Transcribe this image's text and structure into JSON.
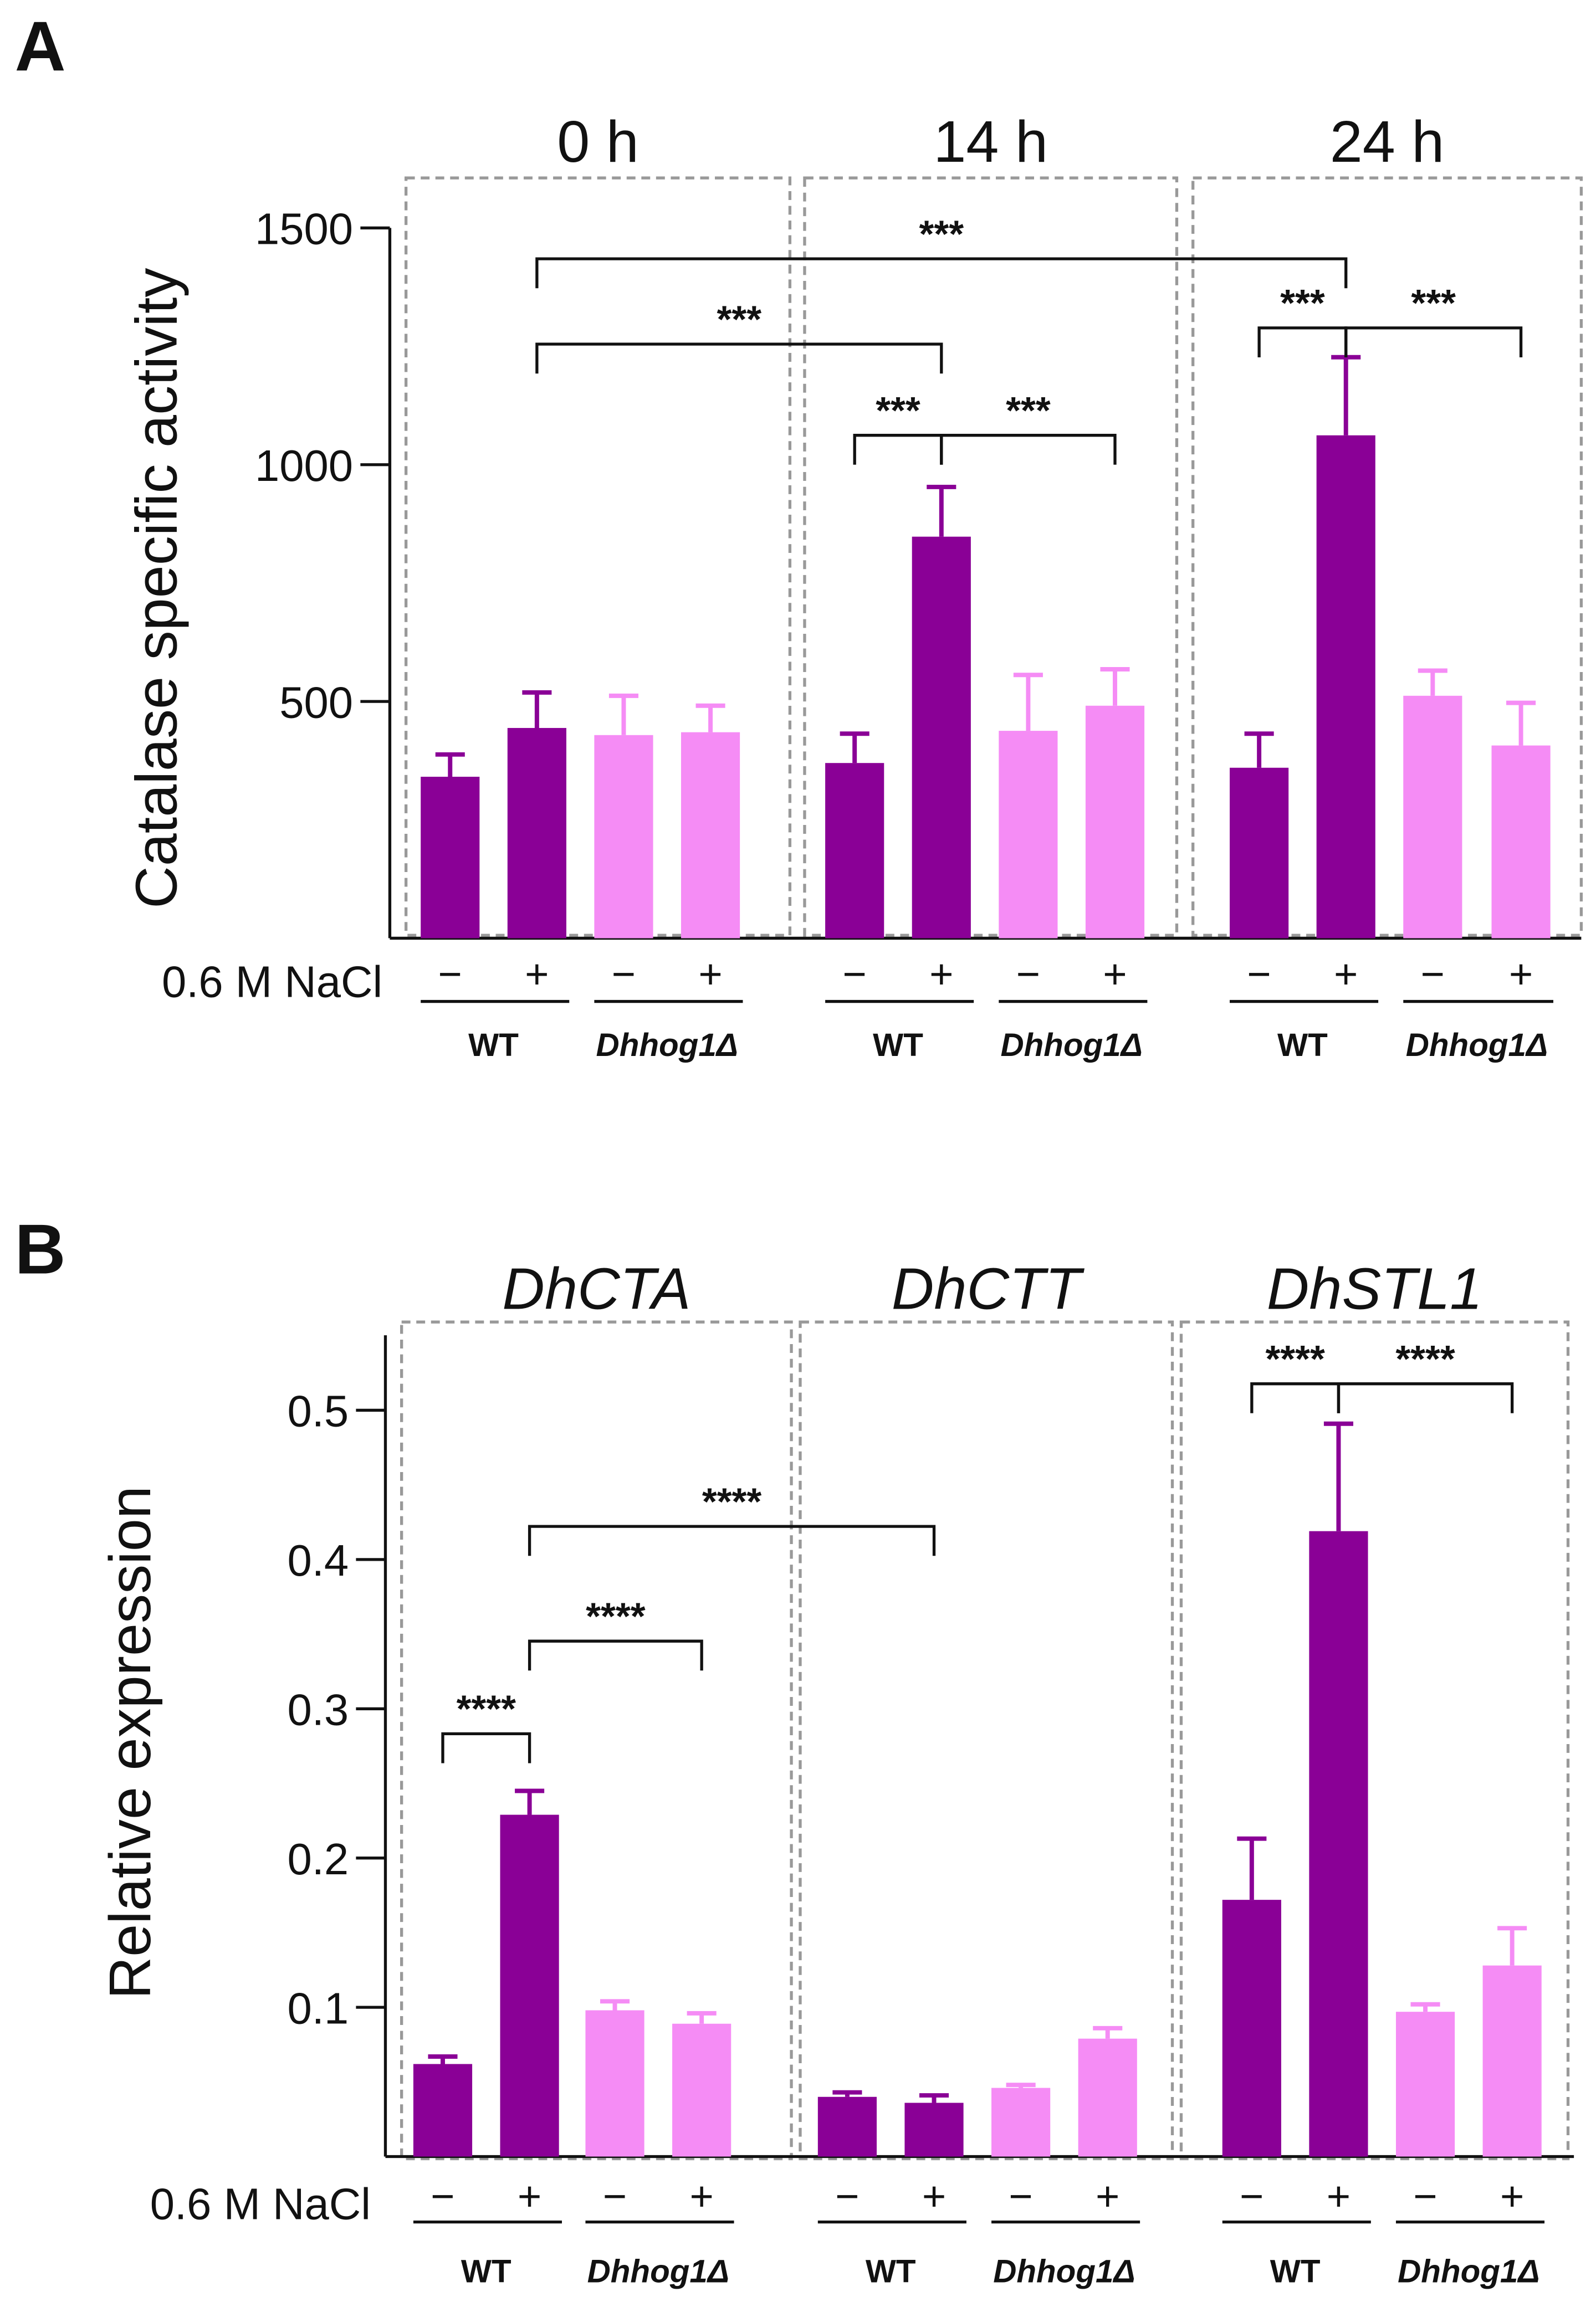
{
  "colors": {
    "WT": "#8a0096",
    "Dhhog1Δ": "#f58cf5"
  },
  "treatment_label": "0.6 M NaCl",
  "sign_minus": "−",
  "sign_plus": "+",
  "chart_data": [
    {
      "panel": "A",
      "type": "bar",
      "ylabel": "Catalase specific activity",
      "ylim": [
        0,
        1500
      ],
      "yticks": [
        500,
        1000,
        1500
      ],
      "grid": false,
      "groups": [
        {
          "title": "0 h",
          "italic": false,
          "bars": [
            {
              "strain": "WT",
              "nacl": "−",
              "value": 341,
              "error": 47
            },
            {
              "strain": "WT",
              "nacl": "+",
              "value": 444,
              "error": 75
            },
            {
              "strain": "Dhhog1Δ",
              "nacl": "−",
              "value": 429,
              "error": 83
            },
            {
              "strain": "Dhhog1Δ",
              "nacl": "+",
              "value": 435,
              "error": 56
            }
          ]
        },
        {
          "title": "14 h",
          "italic": false,
          "bars": [
            {
              "strain": "WT",
              "nacl": "−",
              "value": 370,
              "error": 62
            },
            {
              "strain": "WT",
              "nacl": "+",
              "value": 848,
              "error": 105
            },
            {
              "strain": "Dhhog1Δ",
              "nacl": "−",
              "value": 438,
              "error": 118
            },
            {
              "strain": "Dhhog1Δ",
              "nacl": "+",
              "value": 491,
              "error": 77
            }
          ]
        },
        {
          "title": "24 h",
          "italic": false,
          "bars": [
            {
              "strain": "WT",
              "nacl": "−",
              "value": 360,
              "error": 72
            },
            {
              "strain": "WT",
              "nacl": "+",
              "value": 1062,
              "error": 165
            },
            {
              "strain": "Dhhog1Δ",
              "nacl": "−",
              "value": 512,
              "error": 53
            },
            {
              "strain": "Dhhog1Δ",
              "nacl": "+",
              "value": 407,
              "error": 90
            }
          ]
        }
      ],
      "strain_labels": [
        "WT",
        "Dhhog1Δ"
      ],
      "significance": [
        {
          "from": [
            0,
            1
          ],
          "to": [
            2,
            1
          ],
          "label": "***"
        },
        {
          "from": [
            0,
            1
          ],
          "to": [
            1,
            1
          ],
          "label": "***"
        },
        {
          "from": [
            1,
            0
          ],
          "to": [
            1,
            1
          ],
          "label": "***"
        },
        {
          "from": [
            1,
            1
          ],
          "to": [
            1,
            3
          ],
          "label": "***"
        },
        {
          "from": [
            2,
            0
          ],
          "to": [
            2,
            1
          ],
          "label": "***"
        },
        {
          "from": [
            2,
            1
          ],
          "to": [
            2,
            3
          ],
          "label": "***"
        }
      ]
    },
    {
      "panel": "B",
      "type": "bar",
      "ylabel": "Relative expression",
      "ylim": [
        0,
        0.55
      ],
      "yticks": [
        0.1,
        0.2,
        0.3,
        0.4,
        0.5
      ],
      "ytick_labels": [
        "0.1",
        "0.2",
        "0.3",
        "0.4",
        "0.5"
      ],
      "grid": false,
      "groups": [
        {
          "title": "DhCTA",
          "italic": true,
          "bars": [
            {
              "strain": "WT",
              "nacl": "−",
              "value": 0.062,
              "error": 0.005
            },
            {
              "strain": "WT",
              "nacl": "+",
              "value": 0.229,
              "error": 0.016
            },
            {
              "strain": "Dhhog1Δ",
              "nacl": "−",
              "value": 0.098,
              "error": 0.006
            },
            {
              "strain": "Dhhog1Δ",
              "nacl": "+",
              "value": 0.089,
              "error": 0.007
            }
          ]
        },
        {
          "title": "DhCTT",
          "italic": true,
          "bars": [
            {
              "strain": "WT",
              "nacl": "−",
              "value": 0.04,
              "error": 0.003
            },
            {
              "strain": "WT",
              "nacl": "+",
              "value": 0.036,
              "error": 0.005
            },
            {
              "strain": "Dhhog1Δ",
              "nacl": "−",
              "value": 0.046,
              "error": 0.002
            },
            {
              "strain": "Dhhog1Δ",
              "nacl": "+",
              "value": 0.079,
              "error": 0.007
            }
          ]
        },
        {
          "title": "DhSTL1",
          "italic": true,
          "bars": [
            {
              "strain": "WT",
              "nacl": "−",
              "value": 0.172,
              "error": 0.041
            },
            {
              "strain": "WT",
              "nacl": "+",
              "value": 0.419,
              "error": 0.072
            },
            {
              "strain": "Dhhog1Δ",
              "nacl": "−",
              "value": 0.097,
              "error": 0.005
            },
            {
              "strain": "Dhhog1Δ",
              "nacl": "+",
              "value": 0.128,
              "error": 0.025
            }
          ]
        }
      ],
      "strain_labels": [
        "WT",
        "Dhhog1Δ"
      ],
      "significance": [
        {
          "from": [
            0,
            0
          ],
          "to": [
            0,
            1
          ],
          "label": "****"
        },
        {
          "from": [
            0,
            1
          ],
          "to": [
            0,
            3
          ],
          "label": "****"
        },
        {
          "from": [
            0,
            1
          ],
          "to": [
            1,
            1
          ],
          "label": "****"
        },
        {
          "from": [
            2,
            0
          ],
          "to": [
            2,
            1
          ],
          "label": "****"
        },
        {
          "from": [
            2,
            1
          ],
          "to": [
            2,
            3
          ],
          "label": "****"
        }
      ]
    }
  ]
}
